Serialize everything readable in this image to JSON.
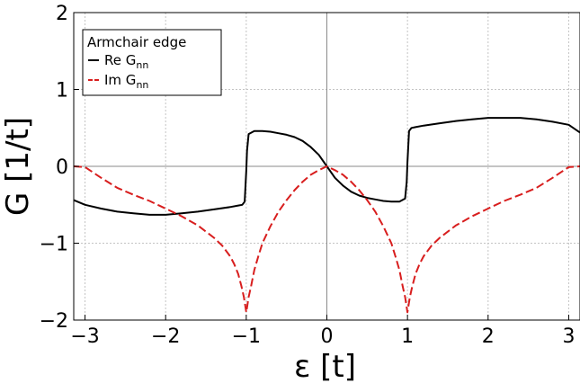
{
  "chart_data": {
    "type": "line",
    "xlabel": "ε [t]",
    "ylabel": "G [1/t]",
    "xlim": [
      -3.14,
      3.14
    ],
    "ylim": [
      -2,
      2
    ],
    "x_ticks": [
      "-3",
      "-2",
      "-1",
      "0",
      "1",
      "2",
      "3"
    ],
    "y_ticks": [
      "2",
      "1",
      "0",
      "-1",
      "-2"
    ],
    "grid": true,
    "legend_title": "Armchair edge",
    "legend_position": "top-left",
    "series": [
      {
        "name_main": "Re G",
        "name_sub": "nn",
        "color": "#000000",
        "style": "solid",
        "x": [
          -3.14,
          -3.0,
          -2.8,
          -2.6,
          -2.4,
          -2.2,
          -2.0,
          -1.8,
          -1.6,
          -1.4,
          -1.2,
          -1.1,
          -1.05,
          -1.02,
          -1.0,
          -0.99,
          -0.97,
          -0.9,
          -0.8,
          -0.7,
          -0.6,
          -0.5,
          -0.4,
          -0.3,
          -0.2,
          -0.1,
          0.0,
          0.1,
          0.2,
          0.3,
          0.4,
          0.5,
          0.6,
          0.7,
          0.8,
          0.9,
          0.97,
          0.99,
          1.0,
          1.02,
          1.05,
          1.1,
          1.2,
          1.4,
          1.6,
          1.8,
          2.0,
          2.2,
          2.4,
          2.6,
          2.8,
          3.0,
          3.14
        ],
        "y": [
          -0.44,
          -0.5,
          -0.55,
          -0.59,
          -0.61,
          -0.63,
          -0.63,
          -0.61,
          -0.59,
          -0.56,
          -0.53,
          -0.51,
          -0.5,
          -0.46,
          -0.05,
          0.2,
          0.42,
          0.46,
          0.46,
          0.45,
          0.43,
          0.41,
          0.38,
          0.33,
          0.25,
          0.15,
          0.0,
          -0.15,
          -0.25,
          -0.33,
          -0.38,
          -0.41,
          -0.43,
          -0.45,
          -0.46,
          -0.46,
          -0.42,
          -0.2,
          0.05,
          0.46,
          0.5,
          0.51,
          0.53,
          0.56,
          0.59,
          0.61,
          0.63,
          0.63,
          0.63,
          0.61,
          0.58,
          0.54,
          0.44
        ]
      },
      {
        "name_main": "Im G",
        "name_sub": "nn",
        "color": "#d81e1e",
        "style": "dashed",
        "x": [
          -3.14,
          -3.0,
          -2.8,
          -2.6,
          -2.4,
          -2.2,
          -2.0,
          -1.8,
          -1.6,
          -1.4,
          -1.3,
          -1.2,
          -1.15,
          -1.1,
          -1.06,
          -1.03,
          -1.0,
          -0.97,
          -0.94,
          -0.9,
          -0.85,
          -0.8,
          -0.7,
          -0.6,
          -0.5,
          -0.4,
          -0.3,
          -0.2,
          -0.1,
          0.0,
          0.1,
          0.2,
          0.3,
          0.4,
          0.5,
          0.6,
          0.7,
          0.8,
          0.85,
          0.9,
          0.94,
          0.97,
          1.0,
          1.03,
          1.06,
          1.1,
          1.15,
          1.2,
          1.3,
          1.4,
          1.6,
          1.8,
          2.0,
          2.2,
          2.4,
          2.6,
          2.8,
          3.0,
          3.14
        ],
        "y": [
          0.0,
          -0.01,
          -0.15,
          -0.28,
          -0.37,
          -0.45,
          -0.55,
          -0.65,
          -0.77,
          -0.93,
          -1.03,
          -1.17,
          -1.27,
          -1.4,
          -1.56,
          -1.7,
          -1.9,
          -1.7,
          -1.56,
          -1.35,
          -1.17,
          -1.0,
          -0.78,
          -0.59,
          -0.44,
          -0.31,
          -0.2,
          -0.11,
          -0.05,
          0.0,
          -0.05,
          -0.11,
          -0.2,
          -0.31,
          -0.44,
          -0.59,
          -0.78,
          -1.0,
          -1.17,
          -1.35,
          -1.56,
          -1.7,
          -1.9,
          -1.7,
          -1.56,
          -1.4,
          -1.27,
          -1.17,
          -1.03,
          -0.93,
          -0.77,
          -0.65,
          -0.55,
          -0.45,
          -0.37,
          -0.28,
          -0.15,
          -0.01,
          0.0
        ]
      }
    ]
  }
}
